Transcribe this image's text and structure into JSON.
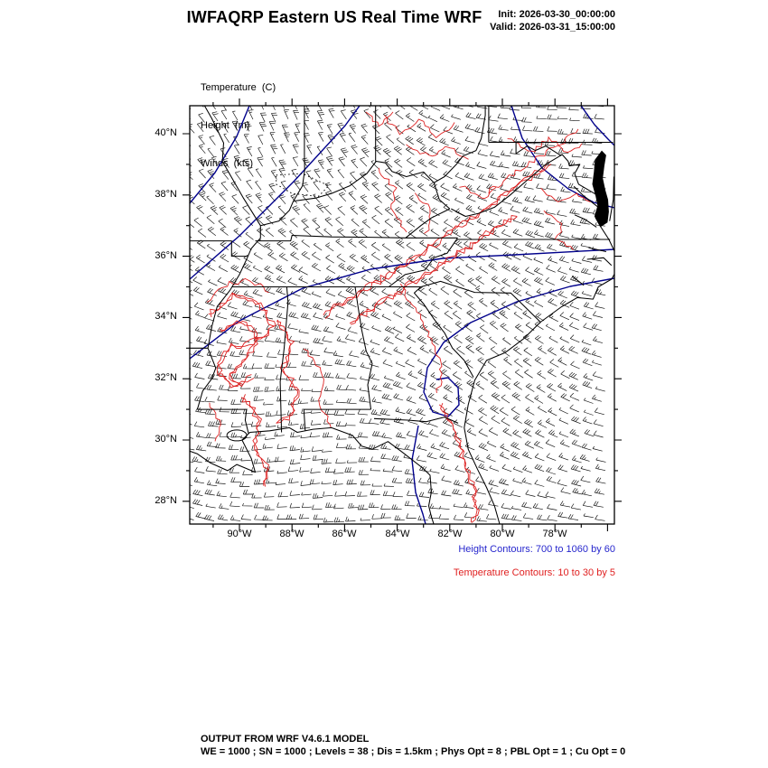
{
  "header": {
    "title": "IWFAQRP Eastern US Real Time WRF",
    "init_label": "Init: 2026-03-30_00:00:00",
    "valid_label": "Valid: 2026-03-31_15:00:00"
  },
  "legend": {
    "temperature": "Temperature  (C)",
    "height": "Height  (m)",
    "winds": "Winds  (kts)"
  },
  "axes": {
    "lat_ticks": [
      "40°N",
      "38°N",
      "36°N",
      "34°N",
      "32°N",
      "30°N",
      "28°N"
    ],
    "lon_ticks": [
      "90°W",
      "88°W",
      "86°W",
      "84°W",
      "82°W",
      "80°W",
      "78°W"
    ]
  },
  "captions": {
    "height": "Height Contours: 700 to 1060 by 60",
    "temperature": "Temperature Contours: 10 to 30 by 5"
  },
  "footer": {
    "line1": "OUTPUT FROM WRF V4.6.1 MODEL",
    "line2": "WE = 1000 ; SN = 1000 ; Levels = 38 ; Dis = 1.5km ; Phys Opt = 8 ; PBL Opt = 1 ; Cu Opt = 0"
  },
  "contours": {
    "height": {
      "from": 700,
      "to": 1060,
      "by": 60
    },
    "temperature": {
      "from": 10,
      "to": 30,
      "by": 5
    }
  },
  "colors": {
    "background": "#ffffff",
    "map_outline": "#000000",
    "wind_barb": "#000000",
    "height_contour": "#00008b",
    "temperature_contour": "#dd2222",
    "height_caption": "#2626cd",
    "temperature_caption": "#e02020"
  }
}
